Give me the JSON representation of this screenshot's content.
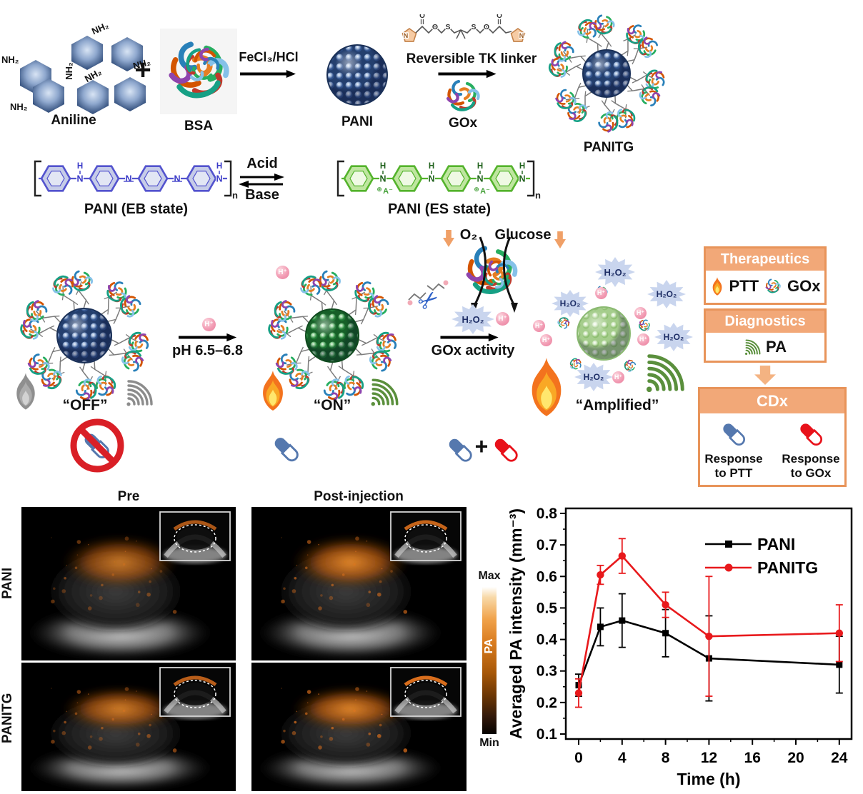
{
  "colors": {
    "box_accent": "#E8945A",
    "box_header": "#F2A878",
    "wave_green": "#5A8F3C",
    "wave_gray": "#8C8C8C",
    "capsule_blue": "#5578AE",
    "capsule_red": "#E8111A",
    "series_pani": "#000000",
    "series_panitg": "#E8191C",
    "pa_colorbar_orange": "#E8892B"
  },
  "synthesis": {
    "nh2_label": "NH₂",
    "aniline_label": "Aniline",
    "plus": "+",
    "bsa_label": "BSA",
    "step1_label": "FeCl₃/HCl",
    "pani_label": "PANI",
    "tk_linker_label": "Reversible TK linker",
    "gox_label": "GOx",
    "panitg_label": "PANITG",
    "atom_o": "O",
    "atom_s": "S",
    "atom_n": "N"
  },
  "equilibrium": {
    "eb_label": "PANI (EB state)",
    "acid_label": "Acid",
    "base_label": "Base",
    "es_label": "PANI (ES state)",
    "atom_h": "H",
    "atom_n": "N",
    "plus_charge": "⊕",
    "counterion": "A⁻",
    "repeat_sub": "n"
  },
  "mechanism": {
    "off_label": "“OFF”",
    "h_plus": "H⁺",
    "ph_arrow_label": "pH 6.5–6.8",
    "on_label": "“ON”",
    "o2_label": "O₂",
    "glucose_label": "Glucose",
    "h2o2_label": "H₂O₂",
    "gox_activity_label": "GOx activity",
    "amplified_label": "“Amplified”",
    "plus": "+",
    "scissors_glyph": "✂"
  },
  "info_boxes": {
    "therapeutics_title": "Therapeutics",
    "ptt_label": "PTT",
    "gox_label": "GOx",
    "diagnostics_title": "Diagnostics",
    "pa_label": "PA",
    "cdx_title": "CDx",
    "response_ptt": "Response to PTT",
    "response_gox": "Response to GOx"
  },
  "imaging": {
    "col_pre": "Pre",
    "col_post": "Post-injection",
    "row_pani": "PANI",
    "row_panitg": "PANITG",
    "colorbar_max": "Max",
    "colorbar_pa": "PA",
    "colorbar_min": "Min"
  },
  "chart_data": {
    "type": "line",
    "title": "",
    "xlabel": "Time (h)",
    "ylabel": "Averaged PA intensity (mm⁻³)",
    "x": [
      0,
      2,
      4,
      8,
      12,
      24
    ],
    "xticks": [
      0,
      4,
      8,
      12,
      16,
      20,
      24
    ],
    "yticks": [
      0.1,
      0.2,
      0.3,
      0.4,
      0.5,
      0.6,
      0.7,
      0.8
    ],
    "xlim": [
      -1.2,
      25.3
    ],
    "ylim": [
      0.085,
      0.815
    ],
    "grid": false,
    "legend_position": "upper right",
    "series": [
      {
        "name": "PANI",
        "color": "#000000",
        "marker": "square",
        "values": [
          0.255,
          0.44,
          0.46,
          0.42,
          0.34,
          0.32
        ],
        "errors": [
          0.035,
          0.06,
          0.085,
          0.075,
          0.135,
          0.09
        ]
      },
      {
        "name": "PANITG",
        "color": "#E8191C",
        "marker": "circle",
        "values": [
          0.23,
          0.605,
          0.665,
          0.51,
          0.41,
          0.42
        ],
        "errors": [
          0.045,
          0.03,
          0.055,
          0.04,
          0.19,
          0.09
        ]
      }
    ]
  }
}
